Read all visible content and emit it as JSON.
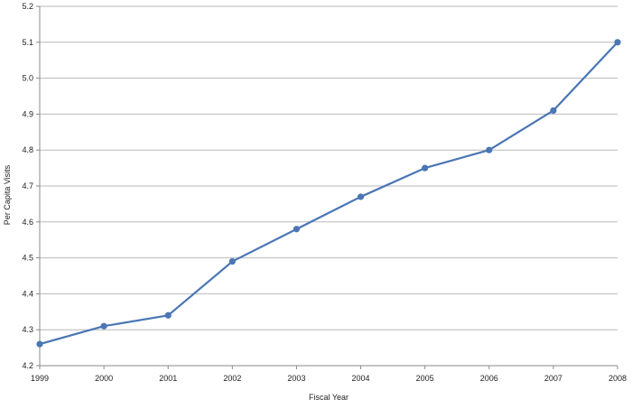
{
  "chart_data": {
    "type": "line",
    "title": "",
    "xlabel": "Fiscal Year",
    "ylabel": "Per Capita Visits",
    "x": [
      "1999",
      "2000",
      "2001",
      "2002",
      "2003",
      "2004",
      "2005",
      "2006",
      "2007",
      "2008"
    ],
    "series": [
      {
        "values": [
          4.26,
          4.31,
          4.34,
          4.49,
          4.58,
          4.67,
          4.75,
          4.8,
          4.91,
          5.1
        ]
      }
    ],
    "ylim": [
      4.2,
      5.2
    ],
    "yticks": [
      "4.2",
      "4.3",
      "4.4",
      "4.5",
      "4.6",
      "4.7",
      "4.8",
      "4.9",
      "5.0",
      "5.1",
      "5.2"
    ],
    "grid": true,
    "legend": "none",
    "colors": {
      "line": "#4a76b4",
      "grid": "#b9b9b9",
      "axis": "#8a8a8a"
    }
  }
}
